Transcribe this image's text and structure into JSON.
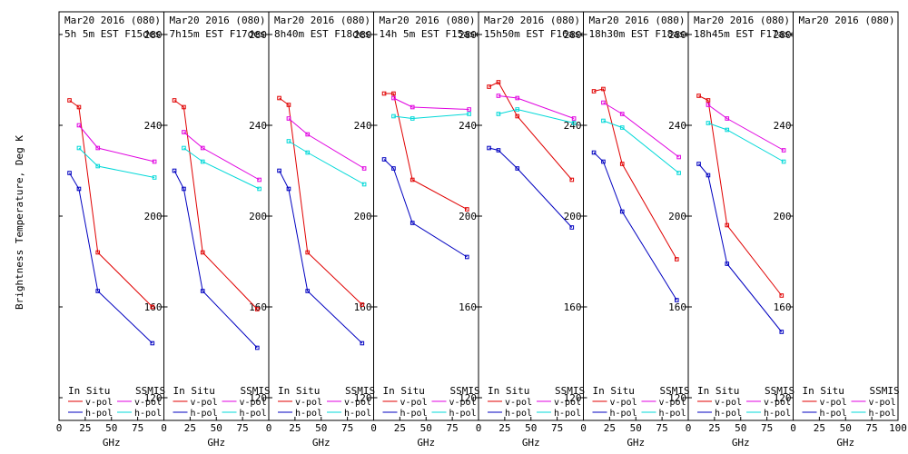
{
  "ylabel": "Brightness Temperature, Deg K",
  "colors": {
    "v_insitu": "#e00000",
    "h_insitu": "#0000c0",
    "v_ssmis": "#e000e0",
    "h_ssmis": "#00d8d8",
    "axis": "#000000"
  },
  "legend": {
    "insitu": "In Situ",
    "ssmis": "SSMIS",
    "v": "v-pol",
    "h": "h-pol"
  },
  "chart_data": [
    {
      "type": "line",
      "title": "Mar20 2016 (080)",
      "subtitle": "5h 5m EST F15des",
      "xlabel": "GHz",
      "xlim": [
        0,
        100
      ],
      "ylim": [
        110,
        290
      ],
      "xticks": [
        "0",
        "25",
        "50",
        "75"
      ],
      "yticks": [
        "120",
        "160",
        "200",
        "240",
        "280"
      ],
      "series": [
        {
          "name": "In Situ v-pol",
          "x": [
            10,
            19,
            37,
            89
          ],
          "values": [
            251,
            248,
            184,
            160
          ]
        },
        {
          "name": "In Situ h-pol",
          "x": [
            10,
            19,
            37,
            89
          ],
          "values": [
            219,
            212,
            167,
            144
          ]
        },
        {
          "name": "SSMIS v-pol",
          "x": [
            19,
            37,
            91
          ],
          "values": [
            240,
            230,
            224
          ]
        },
        {
          "name": "SSMIS h-pol",
          "x": [
            19,
            37,
            91
          ],
          "values": [
            230,
            222,
            217
          ]
        }
      ]
    },
    {
      "type": "line",
      "title": "Mar20 2016 (080)",
      "subtitle": "7h15m EST F17des",
      "xlabel": "GHz",
      "xlim": [
        0,
        100
      ],
      "ylim": [
        110,
        290
      ],
      "xticks": [
        "0",
        "25",
        "50",
        "75"
      ],
      "yticks": [
        "120",
        "160",
        "200",
        "240",
        "280"
      ],
      "series": [
        {
          "name": "In Situ v-pol",
          "x": [
            10,
            19,
            37,
            89
          ],
          "values": [
            251,
            248,
            184,
            159
          ]
        },
        {
          "name": "In Situ h-pol",
          "x": [
            10,
            19,
            37,
            89
          ],
          "values": [
            220,
            212,
            167,
            142
          ]
        },
        {
          "name": "SSMIS v-pol",
          "x": [
            19,
            37,
            91
          ],
          "values": [
            237,
            230,
            216
          ]
        },
        {
          "name": "SSMIS h-pol",
          "x": [
            19,
            37,
            91
          ],
          "values": [
            230,
            224,
            212
          ]
        }
      ]
    },
    {
      "type": "line",
      "title": "Mar20 2016 (080)",
      "subtitle": "8h40m EST F18des",
      "xlabel": "GHz",
      "xlim": [
        0,
        100
      ],
      "ylim": [
        110,
        290
      ],
      "xticks": [
        "0",
        "25",
        "50",
        "75"
      ],
      "yticks": [
        "120",
        "160",
        "200",
        "240",
        "280"
      ],
      "series": [
        {
          "name": "In Situ v-pol",
          "x": [
            10,
            19,
            37,
            89
          ],
          "values": [
            252,
            249,
            184,
            161
          ]
        },
        {
          "name": "In Situ h-pol",
          "x": [
            10,
            19,
            37,
            89
          ],
          "values": [
            220,
            212,
            167,
            144
          ]
        },
        {
          "name": "SSMIS v-pol",
          "x": [
            19,
            37,
            91
          ],
          "values": [
            243,
            236,
            221
          ]
        },
        {
          "name": "SSMIS h-pol",
          "x": [
            19,
            37,
            91
          ],
          "values": [
            233,
            228,
            214
          ]
        }
      ]
    },
    {
      "type": "line",
      "title": "Mar20 2016 (080)",
      "subtitle": "14h 5m EST F15asc",
      "xlabel": "GHz",
      "xlim": [
        0,
        100
      ],
      "ylim": [
        110,
        290
      ],
      "xticks": [
        "0",
        "25",
        "50",
        "75"
      ],
      "yticks": [
        "120",
        "160",
        "200",
        "240",
        "280"
      ],
      "series": [
        {
          "name": "In Situ v-pol",
          "x": [
            10,
            19,
            37,
            89
          ],
          "values": [
            254,
            254,
            216,
            203
          ]
        },
        {
          "name": "In Situ h-pol",
          "x": [
            10,
            19,
            37,
            89
          ],
          "values": [
            225,
            221,
            197,
            182
          ]
        },
        {
          "name": "SSMIS v-pol",
          "x": [
            19,
            37,
            91
          ],
          "values": [
            252,
            248,
            247
          ]
        },
        {
          "name": "SSMIS h-pol",
          "x": [
            19,
            37,
            91
          ],
          "values": [
            244,
            243,
            245
          ]
        }
      ]
    },
    {
      "type": "line",
      "title": "Mar20 2016 (080)",
      "subtitle": "15h50m EST F16asc",
      "xlabel": "GHz",
      "xlim": [
        0,
        100
      ],
      "ylim": [
        110,
        290
      ],
      "xticks": [
        "0",
        "25",
        "50",
        "75"
      ],
      "yticks": [
        "120",
        "160",
        "200",
        "240",
        "280"
      ],
      "series": [
        {
          "name": "In Situ v-pol",
          "x": [
            10,
            19,
            37,
            89
          ],
          "values": [
            257,
            259,
            244,
            216
          ]
        },
        {
          "name": "In Situ h-pol",
          "x": [
            10,
            19,
            37,
            89
          ],
          "values": [
            230,
            229,
            221,
            195
          ]
        },
        {
          "name": "SSMIS v-pol",
          "x": [
            19,
            37,
            91
          ],
          "values": [
            253,
            252,
            243
          ]
        },
        {
          "name": "SSMIS h-pol",
          "x": [
            19,
            37,
            91
          ],
          "values": [
            245,
            247,
            241
          ]
        }
      ]
    },
    {
      "type": "line",
      "title": "Mar20 2016 (080)",
      "subtitle": "18h30m EST F18asc",
      "xlabel": "GHz",
      "xlim": [
        0,
        100
      ],
      "ylim": [
        110,
        290
      ],
      "xticks": [
        "0",
        "25",
        "50",
        "75"
      ],
      "yticks": [
        "120",
        "160",
        "200",
        "240",
        "280"
      ],
      "series": [
        {
          "name": "In Situ v-pol",
          "x": [
            10,
            19,
            37,
            89
          ],
          "values": [
            255,
            256,
            223,
            181
          ]
        },
        {
          "name": "In Situ h-pol",
          "x": [
            10,
            19,
            37,
            89
          ],
          "values": [
            228,
            224,
            202,
            163
          ]
        },
        {
          "name": "SSMIS v-pol",
          "x": [
            19,
            37,
            91
          ],
          "values": [
            250,
            245,
            226
          ]
        },
        {
          "name": "SSMIS h-pol",
          "x": [
            19,
            37,
            91
          ],
          "values": [
            242,
            239,
            219
          ]
        }
      ]
    },
    {
      "type": "line",
      "title": "Mar20 2016 (080)",
      "subtitle": "18h45m EST F17asc",
      "xlabel": "GHz",
      "xlim": [
        0,
        100
      ],
      "ylim": [
        110,
        290
      ],
      "xticks": [
        "0",
        "25",
        "50",
        "75"
      ],
      "yticks": [
        "120",
        "160",
        "200",
        "240",
        "280"
      ],
      "series": [
        {
          "name": "In Situ v-pol",
          "x": [
            10,
            19,
            37,
            89
          ],
          "values": [
            253,
            251,
            196,
            165
          ]
        },
        {
          "name": "In Situ h-pol",
          "x": [
            10,
            19,
            37,
            89
          ],
          "values": [
            223,
            218,
            179,
            149
          ]
        },
        {
          "name": "SSMIS v-pol",
          "x": [
            19,
            37,
            91
          ],
          "values": [
            249,
            243,
            229
          ]
        },
        {
          "name": "SSMIS h-pol",
          "x": [
            19,
            37,
            91
          ],
          "values": [
            241,
            238,
            224
          ]
        }
      ]
    },
    {
      "type": "line",
      "title": "Mar20 2016 (080)",
      "subtitle": "",
      "xlabel": "GHz",
      "xlim": [
        0,
        100
      ],
      "ylim": [
        110,
        290
      ],
      "xticks": [
        "0",
        "25",
        "50",
        "75",
        "100"
      ],
      "yticks": [],
      "series": []
    }
  ]
}
